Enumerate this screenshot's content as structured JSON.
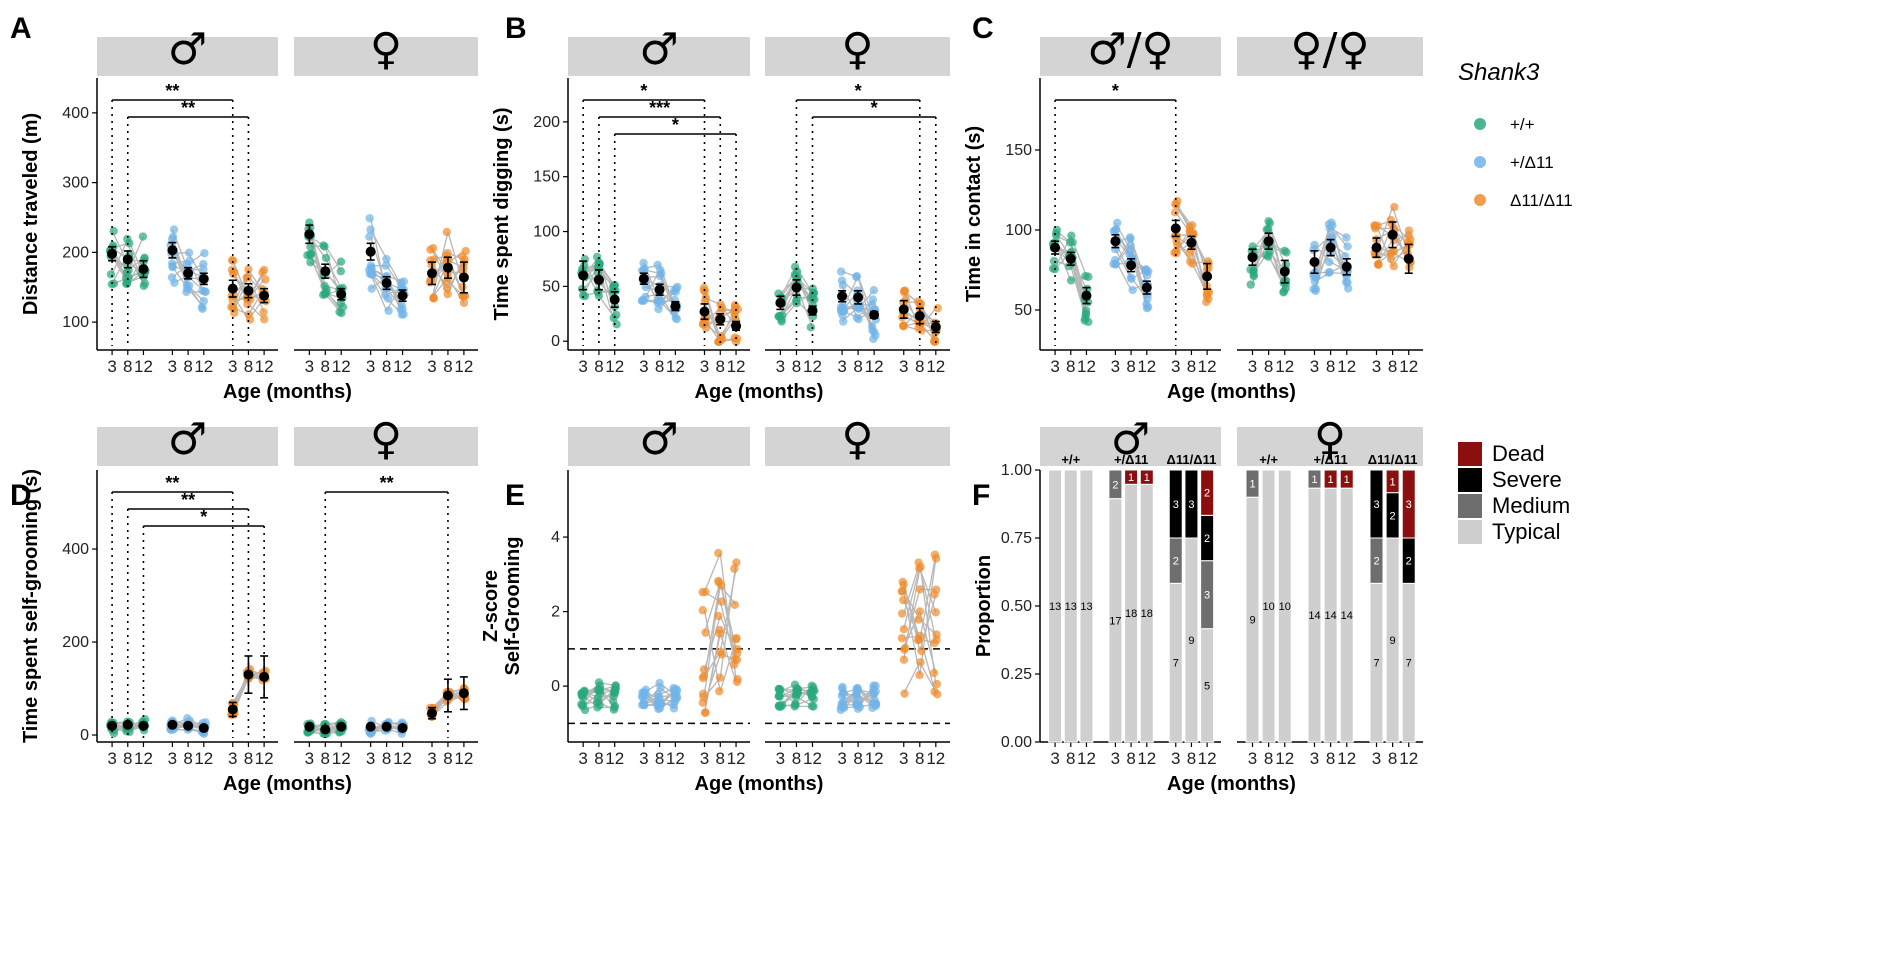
{
  "colors": {
    "wt": "#2aa87e",
    "het": "#70b3e8",
    "hom": "#ef8c2c",
    "strip": "#d4d4d4",
    "mean": "#000000",
    "line": "#b8b8b8",
    "dead": "#8b0f0f",
    "severe": "#000000",
    "medium": "#6e6e6e",
    "typical": "#cfcfcf"
  },
  "legend": {
    "title": "Shank3",
    "genotypes": [
      "+/+",
      "+/Δ11",
      "Δ11/Δ11"
    ],
    "severity_title_items": [
      "Dead",
      "Severe",
      "Medium",
      "Typical"
    ]
  },
  "chart_data": [
    {
      "panel": "A",
      "type": "scatter",
      "ylabel": "Distance traveled (m)",
      "xlabel": "Age (months)",
      "ylim": [
        60,
        450
      ],
      "yticks": [
        100,
        200,
        300,
        400
      ],
      "facets": [
        "♂",
        "♀"
      ],
      "ages": [
        "3",
        "8",
        "12"
      ],
      "means": {
        "male": {
          "+/+": [
            198,
            190,
            176
          ],
          "+/Δ11": [
            203,
            170,
            162
          ],
          "Δ11/Δ11": [
            148,
            145,
            138
          ]
        },
        "female": {
          "+/+": [
            226,
            173,
            140
          ],
          "+/Δ11": [
            201,
            156,
            138
          ],
          "Δ11/Δ11": [
            170,
            178,
            164
          ]
        }
      },
      "errors": {
        "male": {
          "+/+": [
            10,
            12,
            12
          ],
          "+/Δ11": [
            11,
            8,
            8
          ],
          "Δ11/Δ11": [
            12,
            10,
            10
          ]
        },
        "female": {
          "+/+": [
            13,
            10,
            8
          ],
          "+/Δ11": [
            12,
            9,
            8
          ],
          "Δ11/Δ11": [
            16,
            15,
            22
          ]
        }
      },
      "spread": 45,
      "significance": [
        {
          "facet": "male",
          "from": [
            "+/+",
            0
          ],
          "to": [
            "Δ11/Δ11",
            0
          ],
          "label": "**"
        },
        {
          "facet": "male",
          "from": [
            "+/+",
            1
          ],
          "to": [
            "Δ11/Δ11",
            1
          ],
          "label": "**"
        }
      ]
    },
    {
      "panel": "B",
      "type": "scatter",
      "ylabel": "Time spent digging (s)",
      "xlabel": "Age (months)",
      "ylim": [
        -8,
        240
      ],
      "yticks": [
        0,
        50,
        100,
        150,
        200
      ],
      "facets": [
        "♂",
        "♀"
      ],
      "ages": [
        "3",
        "8",
        "12"
      ],
      "means": {
        "male": {
          "+/+": [
            60,
            56,
            38
          ],
          "+/Δ11": [
            57,
            47,
            32
          ],
          "Δ11/Δ11": [
            27,
            20,
            14
          ]
        },
        "female": {
          "+/+": [
            35,
            49,
            28
          ],
          "+/Δ11": [
            41,
            40,
            24
          ],
          "Δ11/Δ11": [
            29,
            23,
            13
          ]
        }
      },
      "errors": {
        "male": {
          "+/+": [
            13,
            9,
            7
          ],
          "+/Δ11": [
            5,
            5,
            4
          ],
          "Δ11/Δ11": [
            7,
            5,
            4
          ]
        },
        "female": {
          "+/+": [
            6,
            7,
            4
          ],
          "+/Δ11": [
            5,
            6,
            3
          ],
          "Δ11/Δ11": [
            8,
            7,
            5
          ]
        }
      },
      "spread": 22,
      "significance": [
        {
          "facet": "male",
          "from": [
            "+/+",
            0
          ],
          "to": [
            "Δ11/Δ11",
            0
          ],
          "label": "*"
        },
        {
          "facet": "male",
          "from": [
            "+/+",
            1
          ],
          "to": [
            "Δ11/Δ11",
            1
          ],
          "label": "***"
        },
        {
          "facet": "male",
          "from": [
            "+/+",
            2
          ],
          "to": [
            "Δ11/Δ11",
            2
          ],
          "label": "*"
        },
        {
          "facet": "female",
          "from": [
            "+/+",
            1
          ],
          "to": [
            "Δ11/Δ11",
            1
          ],
          "label": "*"
        },
        {
          "facet": "female",
          "from": [
            "+/+",
            2
          ],
          "to": [
            "Δ11/Δ11",
            2
          ],
          "label": "*"
        }
      ]
    },
    {
      "panel": "C",
      "type": "scatter",
      "ylabel": "Time in contact (s)",
      "xlabel": "Age (months)",
      "ylim": [
        25,
        195
      ],
      "yticks": [
        50,
        100,
        150
      ],
      "facets": [
        "♂ / ♀",
        "♀ / ♀"
      ],
      "ages": [
        "3",
        "8",
        "12"
      ],
      "means": {
        "male": {
          "+/+": [
            89,
            82,
            59
          ],
          "+/Δ11": [
            93,
            78,
            64
          ],
          "Δ11/Δ11": [
            101,
            92,
            71
          ]
        },
        "female": {
          "+/+": [
            83,
            93,
            74
          ],
          "+/Δ11": [
            80,
            89,
            77
          ],
          "Δ11/Δ11": [
            89,
            97,
            82
          ]
        }
      },
      "errors": {
        "male": {
          "+/+": [
            4,
            4,
            5
          ],
          "+/Δ11": [
            4,
            4,
            4
          ],
          "Δ11/Δ11": [
            5,
            4,
            8
          ]
        },
        "female": {
          "+/+": [
            5,
            5,
            7
          ],
          "+/Δ11": [
            7,
            5,
            5
          ],
          "Δ11/Δ11": [
            6,
            8,
            9
          ]
        }
      },
      "spread": 18,
      "significance": [
        {
          "facet": "male",
          "from": [
            "+/+",
            0
          ],
          "to": [
            "Δ11/Δ11",
            0
          ],
          "label": "*"
        }
      ]
    },
    {
      "panel": "D",
      "type": "scatter",
      "ylabel": "Time spent self-grooming (s)",
      "xlabel": "Age (months)",
      "ylim": [
        -15,
        570
      ],
      "yticks": [
        0,
        200,
        400
      ],
      "facets": [
        "♂",
        "♀"
      ],
      "ages": [
        "3",
        "8",
        "12"
      ],
      "means": {
        "male": {
          "+/+": [
            20,
            22,
            20
          ],
          "+/Δ11": [
            22,
            20,
            15
          ],
          "Δ11/Δ11": [
            55,
            130,
            125
          ]
        },
        "female": {
          "+/+": [
            18,
            12,
            18
          ],
          "+/Δ11": [
            18,
            18,
            15
          ],
          "Δ11/Δ11": [
            47,
            85,
            90
          ]
        }
      },
      "errors": {
        "male": {
          "+/+": [
            4,
            5,
            5
          ],
          "+/Δ11": [
            4,
            4,
            3
          ],
          "Δ11/Δ11": [
            15,
            40,
            45
          ]
        },
        "female": {
          "+/+": [
            4,
            3,
            4
          ],
          "+/Δ11": [
            4,
            4,
            3
          ],
          "Δ11/Δ11": [
            12,
            35,
            35
          ]
        }
      },
      "spread": 15,
      "significance": [
        {
          "facet": "male",
          "from": [
            "+/+",
            0
          ],
          "to": [
            "Δ11/Δ11",
            0
          ],
          "label": "**"
        },
        {
          "facet": "male",
          "from": [
            "+/+",
            1
          ],
          "to": [
            "Δ11/Δ11",
            1
          ],
          "label": "**"
        },
        {
          "facet": "male",
          "from": [
            "+/+",
            2
          ],
          "to": [
            "Δ11/Δ11",
            2
          ],
          "label": "*"
        },
        {
          "facet": "female",
          "from": [
            "+/+",
            1
          ],
          "to": [
            "Δ11/Δ11",
            1
          ],
          "label": "**"
        }
      ]
    },
    {
      "panel": "E",
      "type": "scatter",
      "ylabel": "Z-score\nSelf-Grooming",
      "xlabel": "Age (months)",
      "ylim": [
        -1.5,
        5.8
      ],
      "yticks": [
        0,
        2,
        4
      ],
      "facets": [
        "♂",
        "♀"
      ],
      "ages": [
        "3",
        "8",
        "12"
      ],
      "hlines": [
        1,
        -1
      ],
      "means": {
        "male": {
          "+/+": [
            -0.3,
            -0.3,
            -0.3
          ],
          "+/Δ11": [
            -0.3,
            -0.3,
            -0.3
          ],
          "Δ11/Δ11": [
            0.6,
            1.0,
            1.2
          ]
        },
        "female": {
          "+/+": [
            -0.3,
            -0.3,
            -0.3
          ],
          "+/Δ11": [
            -0.3,
            -0.3,
            -0.3
          ],
          "Δ11/Δ11": [
            0.5,
            1.0,
            1.1
          ]
        }
      },
      "errors": null,
      "spread": 0.35,
      "significance": []
    },
    {
      "panel": "F",
      "type": "bar",
      "stacked": true,
      "ylabel": "Proportion",
      "xlabel": "Age (months)",
      "ylim": [
        0,
        1
      ],
      "yticks": [
        "0.00",
        "0.25",
        "0.50",
        "0.75",
        "1.00"
      ],
      "facets": [
        "♂",
        "♀"
      ],
      "ages": [
        "3",
        "8",
        "12"
      ],
      "stack_order": [
        "typical",
        "medium",
        "severe",
        "dead"
      ],
      "bars": {
        "male": {
          "+/+": [
            [
              13,
              0,
              0,
              0
            ],
            [
              13,
              0,
              0,
              0
            ],
            [
              13,
              0,
              0,
              0
            ]
          ],
          "+/Δ11": [
            [
              17,
              2,
              0,
              0
            ],
            [
              18,
              0,
              0,
              1
            ],
            [
              18,
              0,
              0,
              1
            ]
          ],
          "Δ11/Δ11": [
            [
              7,
              2,
              3,
              0
            ],
            [
              9,
              0,
              3,
              0
            ],
            [
              5,
              3,
              2,
              2
            ]
          ]
        },
        "female": {
          "+/+": [
            [
              9,
              1,
              0,
              0
            ],
            [
              10,
              0,
              0,
              0
            ],
            [
              10,
              0,
              0,
              0
            ]
          ],
          "+/Δ11": [
            [
              14,
              1,
              0,
              0
            ],
            [
              14,
              0,
              0,
              1
            ],
            [
              14,
              0,
              0,
              1
            ]
          ],
          "Δ11/Δ11": [
            [
              7,
              2,
              3,
              0
            ],
            [
              9,
              0,
              2,
              1
            ],
            [
              7,
              0,
              2,
              3
            ]
          ]
        }
      }
    }
  ]
}
